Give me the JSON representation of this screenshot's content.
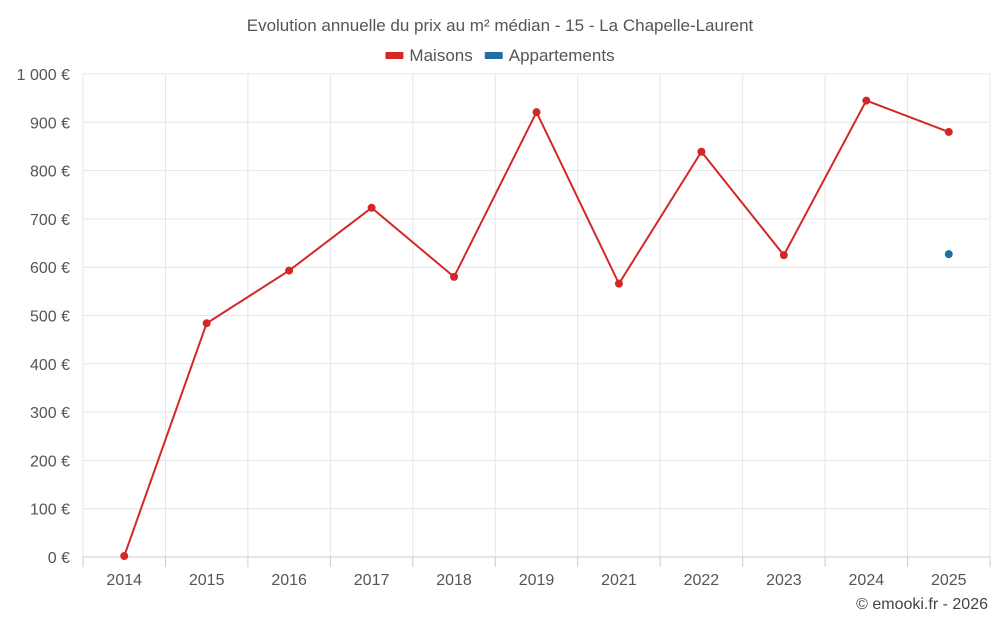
{
  "chart_data": {
    "type": "line",
    "title": "Evolution annuelle du prix au m² médian - 15 - La Chapelle-Laurent",
    "categories": [
      "2014",
      "2015",
      "2016",
      "2017",
      "2018",
      "2019",
      "2021",
      "2022",
      "2023",
      "2024",
      "2025"
    ],
    "series": [
      {
        "name": "Maisons",
        "color": "#d62728",
        "values": [
          2,
          484,
          593,
          723,
          580,
          921,
          566,
          839,
          625,
          945,
          880
        ]
      },
      {
        "name": "Appartements",
        "color": "#1f6fa3",
        "values": [
          null,
          null,
          null,
          null,
          null,
          null,
          null,
          null,
          null,
          null,
          627
        ]
      }
    ],
    "ylim": [
      0,
      1000
    ],
    "yticks": [
      0,
      100,
      200,
      300,
      400,
      500,
      600,
      700,
      800,
      900,
      1000
    ],
    "ytick_labels": [
      "0 €",
      "100 €",
      "200 €",
      "300 €",
      "400 €",
      "500 €",
      "600 €",
      "700 €",
      "800 €",
      "900 €",
      "1 000 €"
    ],
    "xlabel": "",
    "ylabel": "",
    "grid": true,
    "legend_position": "top-center"
  },
  "credit": "© emooki.fr - 2026"
}
